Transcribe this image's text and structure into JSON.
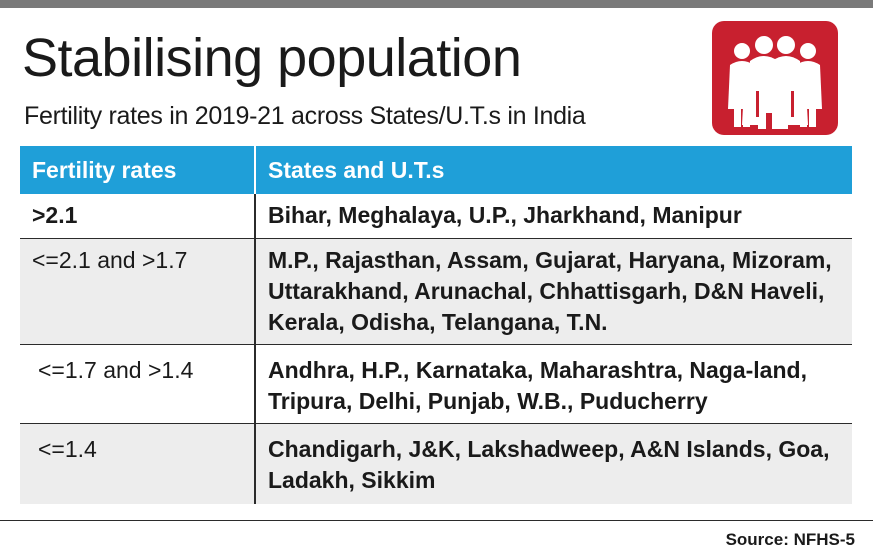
{
  "header": {
    "title": "Stabilising population",
    "subtitle": "Fertility rates in 2019-21 across States/U.T.s in India"
  },
  "logo": {
    "icon": "family-icon",
    "color": "#c8202f"
  },
  "table": {
    "columns": [
      "Fertility rates",
      "States and U.T.s"
    ],
    "rows": [
      {
        "rate": ">2.1",
        "states": "Bihar, Meghalaya, U.P., Jharkhand, Manipur"
      },
      {
        "rate": "<=2.1 and >1.7",
        "states": "M.P., Rajasthan, Assam, Gujarat, Haryana, Mizoram, Uttarakhand, Arunachal, Chhattisgarh, D&N Haveli, Kerala, Odisha, Telangana, T.N."
      },
      {
        "rate": "<=1.7 and >1.4",
        "states": "Andhra, H.P., Karnataka, Maharashtra, Naga-land, Tripura, Delhi, Punjab, W.B., Puducherry"
      },
      {
        "rate": "<=1.4",
        "states": "Chandigarh, J&K, Lakshadweep, A&N Islands, Goa, Ladakh, Sikkim"
      }
    ],
    "header_color": "#1f9fd8",
    "shade_color": "#ededed"
  },
  "footer": {
    "source": "Source: NFHS-5"
  }
}
